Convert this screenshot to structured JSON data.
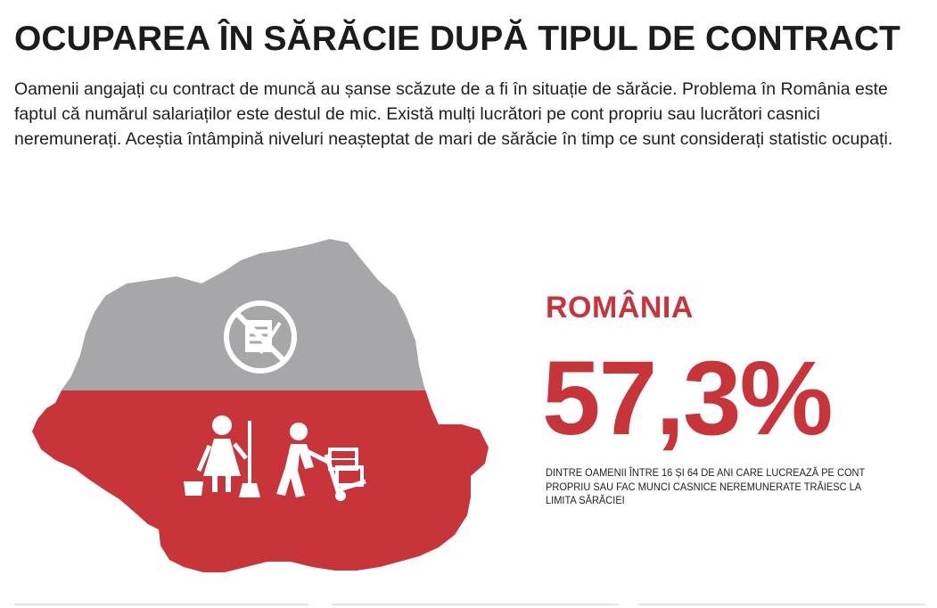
{
  "title": "OCUPAREA ÎN SĂRĂCIE DUPĂ TIPUL DE CONTRACT",
  "intro": "Oamenii angajați cu contract de muncă au șanse scăzute de a fi în situație de sărăcie. Problema în România este faptul că numărul salariaților este destul de mic. Există mulți lucrători pe cont propriu sau lucrători casnici neremunerați. Aceștia întâmpină niveluri neașteptat de mari de sărăcie în timp ce sunt considerați statistic ocupați.",
  "country": "ROMÂNIA",
  "percentage": "57,3%",
  "caption": "DINTRE OAMENII ÎNTRE 16 ȘI 64 DE ANI CARE LUCREAZĂ PE CONT PROPRIU SAU FAC MUNCI CASNICE NEREMUNERATE TRĂIESC LA LIMITA SĂRĂCIEI",
  "share_in_poverty": 57.3,
  "colors": {
    "accent_red": "#c7343a",
    "map_grey": "#a7a7a9",
    "text": "#1e1e1e"
  },
  "icons": [
    "no-contract-icon",
    "cleaning-woman-icon",
    "delivery-worker-icon"
  ]
}
